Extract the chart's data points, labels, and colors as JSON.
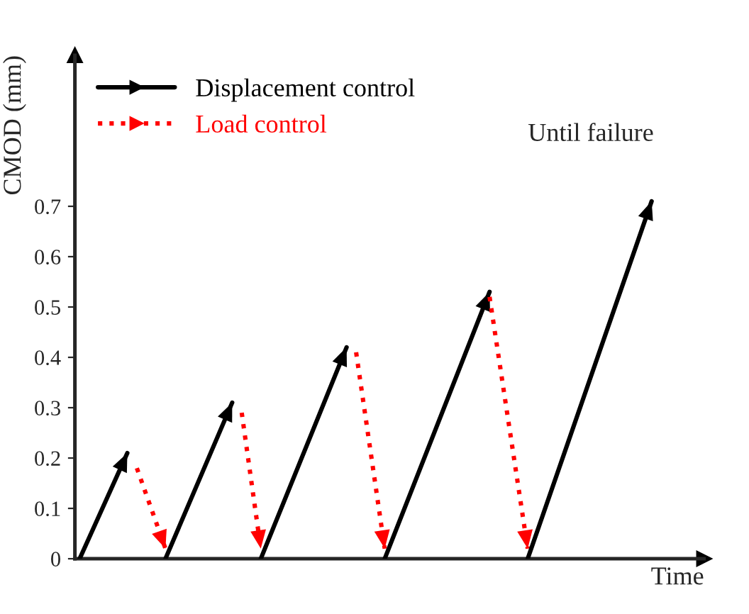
{
  "chart_data": {
    "type": "line",
    "xlabel": "Time",
    "ylabel": "CMOD (mm)",
    "categories": [
      null,
      null,
      null,
      null,
      null,
      null,
      null,
      null,
      null,
      null,
      null,
      null,
      null,
      null,
      null,
      null,
      null,
      null,
      null,
      null,
      null,
      null,
      null,
      null,
      null,
      null,
      null,
      null,
      null,
      null,
      null,
      null,
      null,
      null,
      null,
      null,
      null,
      null,
      null,
      null,
      null,
      null,
      null,
      null,
      null,
      null,
      null,
      null,
      null,
      null,
      null,
      null,
      null,
      null,
      null,
      null,
      null,
      null,
      null,
      null,
      null,
      null,
      null,
      null,
      null,
      null
    ],
    "ylim": [
      0,
      1.0
    ],
    "yticks": [
      0,
      0.1,
      0.2,
      0.3,
      0.4,
      0.5,
      0.6,
      0.7
    ],
    "tick_labels": "y",
    "legend": "top left",
    "annotations": [
      "Until failure"
    ],
    "series": [
      {
        "name": "Displacement control",
        "color": "#000000",
        "line_style": "solid",
        "values": [
          0,
          null,
          null,
          null,
          null,
          0.21,
          null,
          null,
          null,
          null,
          null,
          null,
          null,
          null,
          null,
          null,
          null,
          null,
          null,
          null,
          null,
          null,
          null,
          null,
          null,
          null,
          null,
          null,
          null,
          null,
          null,
          null,
          null,
          null,
          null,
          null,
          null,
          null,
          null,
          null,
          null,
          null,
          null,
          null,
          null,
          null,
          null,
          null,
          null,
          null,
          null,
          null,
          null,
          null,
          null,
          null,
          null,
          null,
          null,
          null,
          null,
          null,
          null,
          null,
          null,
          null
        ]
      },
      {
        "name": "Load control",
        "color": "#ff0000",
        "line_style": "dotted",
        "values": [
          null,
          null,
          null,
          null,
          null,
          null,
          0.18,
          null,
          null,
          0.02,
          null,
          null,
          null,
          null,
          null,
          null,
          null,
          null,
          null,
          null,
          null,
          null,
          null,
          null,
          null,
          null,
          null,
          null,
          null,
          null,
          null,
          null,
          null,
          null,
          null,
          null,
          null,
          null,
          null,
          null,
          null,
          null,
          null,
          null,
          null,
          null,
          null,
          null,
          null,
          null,
          null,
          null,
          null,
          null,
          null,
          null,
          null,
          null,
          null,
          null,
          null,
          null,
          null,
          null,
          null,
          null
        ]
      },
      {
        "color": "#000000",
        "line_style": "solid",
        "values": [
          null,
          null,
          null,
          null,
          null,
          null,
          null,
          null,
          null,
          0,
          null,
          null,
          null,
          null,
          null,
          null,
          0.31,
          null,
          null,
          null,
          null,
          null,
          null,
          null,
          null,
          null,
          null,
          null,
          null,
          null,
          null,
          null,
          null,
          null,
          null,
          null,
          null,
          null,
          null,
          null,
          null,
          null,
          null,
          null,
          null,
          null,
          null,
          null,
          null,
          null,
          null,
          null,
          null,
          null,
          null,
          null,
          null,
          null,
          null,
          null,
          null,
          null,
          null,
          null,
          null,
          null
        ]
      },
      {
        "color": "#ff0000",
        "line_style": "dotted",
        "values": [
          null,
          null,
          null,
          null,
          null,
          null,
          null,
          null,
          null,
          null,
          null,
          null,
          null,
          null,
          null,
          null,
          null,
          0.29,
          null,
          0.02,
          null,
          null,
          null,
          null,
          null,
          null,
          null,
          null,
          null,
          null,
          null,
          null,
          null,
          null,
          null,
          null,
          null,
          null,
          null,
          null,
          null,
          null,
          null,
          null,
          null,
          null,
          null,
          null,
          null,
          null,
          null,
          null,
          null,
          null,
          null,
          null,
          null,
          null,
          null,
          null,
          null,
          null,
          null,
          null,
          null,
          null
        ]
      },
      {
        "color": "#000000",
        "line_style": "solid",
        "values": [
          null,
          null,
          null,
          null,
          null,
          null,
          null,
          null,
          null,
          null,
          null,
          null,
          null,
          null,
          null,
          null,
          null,
          null,
          null,
          0,
          null,
          null,
          null,
          null,
          null,
          null,
          null,
          null,
          0.42,
          null,
          null,
          null,
          null,
          null,
          null,
          null,
          null,
          null,
          null,
          null,
          null,
          null,
          null,
          null,
          null,
          null,
          null,
          null,
          null,
          null,
          null,
          null,
          null,
          null,
          null,
          null,
          null,
          null,
          null,
          null,
          null,
          null,
          null,
          null,
          null,
          null
        ]
      },
      {
        "color": "#ff0000",
        "line_style": "dotted",
        "values": [
          null,
          null,
          null,
          null,
          null,
          null,
          null,
          null,
          null,
          null,
          null,
          null,
          null,
          null,
          null,
          null,
          null,
          null,
          null,
          null,
          null,
          null,
          null,
          null,
          null,
          null,
          null,
          null,
          null,
          0.41,
          null,
          null,
          0.02,
          null,
          null,
          null,
          null,
          null,
          null,
          null,
          null,
          null,
          null,
          null,
          null,
          null,
          null,
          null,
          null,
          null,
          null,
          null,
          null,
          null,
          null,
          null,
          null,
          null,
          null,
          null,
          null,
          null,
          null,
          null,
          null,
          null
        ]
      },
      {
        "color": "#000000",
        "line_style": "solid",
        "values": [
          null,
          null,
          null,
          null,
          null,
          null,
          null,
          null,
          null,
          null,
          null,
          null,
          null,
          null,
          null,
          null,
          null,
          null,
          null,
          null,
          null,
          null,
          null,
          null,
          null,
          null,
          null,
          null,
          null,
          null,
          null,
          null,
          0,
          null,
          null,
          null,
          null,
          null,
          null,
          null,
          null,
          null,
          null,
          0.53,
          null,
          null,
          null,
          null,
          null,
          null,
          null,
          null,
          null,
          null,
          null,
          null,
          null,
          null,
          null,
          null,
          null,
          null,
          null,
          null,
          null,
          null
        ]
      },
      {
        "color": "#ff0000",
        "line_style": "dotted",
        "values": [
          null,
          null,
          null,
          null,
          null,
          null,
          null,
          null,
          null,
          null,
          null,
          null,
          null,
          null,
          null,
          null,
          null,
          null,
          null,
          null,
          null,
          null,
          null,
          null,
          null,
          null,
          null,
          null,
          null,
          null,
          null,
          null,
          null,
          null,
          null,
          null,
          null,
          null,
          null,
          null,
          null,
          null,
          null,
          0.52,
          null,
          null,
          null,
          0.02,
          null,
          null,
          null,
          null,
          null,
          null,
          null,
          null,
          null,
          null,
          null,
          null,
          null,
          null,
          null,
          null,
          null,
          null
        ]
      },
      {
        "color": "#000000",
        "line_style": "solid",
        "values": [
          null,
          null,
          null,
          null,
          null,
          null,
          null,
          null,
          null,
          null,
          null,
          null,
          null,
          null,
          null,
          null,
          null,
          null,
          null,
          null,
          null,
          null,
          null,
          null,
          null,
          null,
          null,
          null,
          null,
          null,
          null,
          null,
          null,
          null,
          null,
          null,
          null,
          null,
          null,
          null,
          null,
          null,
          null,
          null,
          null,
          null,
          null,
          0,
          null,
          null,
          null,
          null,
          null,
          null,
          null,
          null,
          null,
          null,
          null,
          null,
          0.71,
          null,
          null,
          null,
          null,
          null
        ]
      }
    ]
  }
}
